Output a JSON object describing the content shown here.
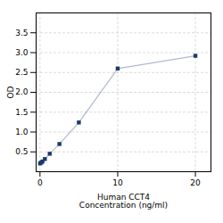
{
  "chart_data": {
    "type": "line",
    "x": [
      0,
      0.156,
      0.313,
      0.625,
      1.25,
      2.5,
      5,
      10,
      20
    ],
    "values": [
      0.208,
      0.229,
      0.257,
      0.319,
      0.453,
      0.698,
      1.24,
      2.6,
      2.92
    ],
    "color": "#1a3a6b",
    "marker": "square",
    "xlabel": "Human CCT4\nConcentration (ng/ml)",
    "ylabel": "OD",
    "xlim": [
      -0.5,
      22
    ],
    "ylim": [
      0,
      4.0
    ],
    "xticks": [
      0,
      10,
      20
    ],
    "yticks": [
      0.5,
      {
        "value": 1.0,
        "label": "1.0"
      },
      1.5,
      {
        "value": 2.0,
        "label": "2.0"
      },
      2.5,
      {
        "value": 3.0,
        "label": "3.0"
      },
      3.5
    ],
    "grid": true
  }
}
